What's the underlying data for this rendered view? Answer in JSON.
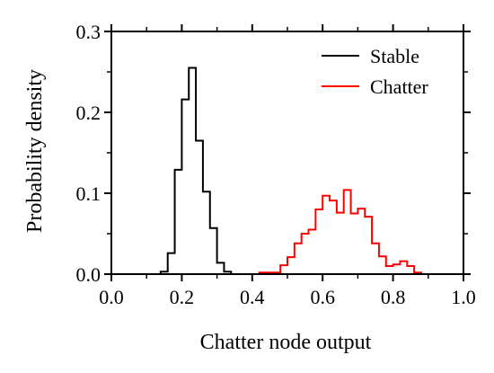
{
  "chart_data": {
    "type": "line",
    "title": "",
    "xlabel": "Chatter node output",
    "ylabel": "Probability density",
    "xlim": [
      0.0,
      1.0
    ],
    "ylim": [
      0.0,
      0.3
    ],
    "xticks": [
      {
        "value": 0.0,
        "label": "0.0"
      },
      {
        "value": 0.2,
        "label": "0.2"
      },
      {
        "value": 0.4,
        "label": "0.4"
      },
      {
        "value": 0.6,
        "label": "0.6"
      },
      {
        "value": 0.8,
        "label": "0.8"
      },
      {
        "value": 1.0,
        "label": "1.0"
      }
    ],
    "yticks": [
      {
        "value": 0.0,
        "label": "0.0"
      },
      {
        "value": 0.1,
        "label": "0.1"
      },
      {
        "value": 0.2,
        "label": "0.2"
      },
      {
        "value": 0.3,
        "label": "0.3"
      }
    ],
    "grid": false,
    "legend_position": "top-right",
    "series": [
      {
        "name": "Stable",
        "color": "#000000",
        "bin_edges": [
          0.14,
          0.16,
          0.18,
          0.2,
          0.22,
          0.24,
          0.26,
          0.28,
          0.3,
          0.32,
          0.34
        ],
        "values": [
          0.003,
          0.026,
          0.129,
          0.216,
          0.255,
          0.165,
          0.102,
          0.057,
          0.014,
          0.003
        ]
      },
      {
        "name": "Chatter",
        "color": "#ff0000",
        "bin_edges": [
          0.42,
          0.44,
          0.46,
          0.48,
          0.5,
          0.52,
          0.54,
          0.56,
          0.58,
          0.6,
          0.62,
          0.64,
          0.66,
          0.68,
          0.7,
          0.72,
          0.74,
          0.76,
          0.78,
          0.8,
          0.82,
          0.84,
          0.86,
          0.88
        ],
        "values": [
          0.002,
          0.002,
          0.002,
          0.011,
          0.021,
          0.038,
          0.05,
          0.055,
          0.08,
          0.097,
          0.091,
          0.076,
          0.104,
          0.075,
          0.081,
          0.071,
          0.038,
          0.022,
          0.01,
          0.012,
          0.016,
          0.01,
          0.002
        ]
      }
    ]
  }
}
